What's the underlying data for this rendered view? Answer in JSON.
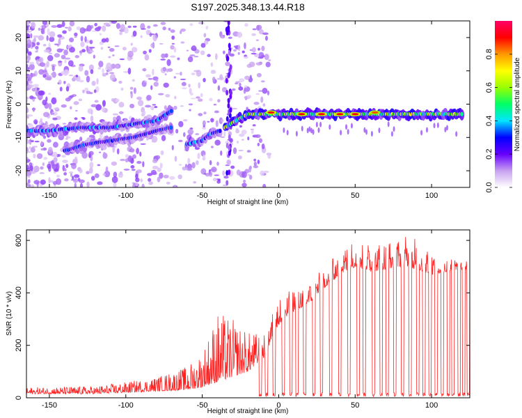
{
  "title": "S197.2025.348.13.44.R18",
  "chart_data": [
    {
      "type": "heatmap",
      "xlabel": "Height of straight line (km)",
      "ylabel": "Frequency (Hz)",
      "xlim": [
        -165,
        125
      ],
      "ylim": [
        -25,
        25
      ],
      "xticks": [
        -150,
        -100,
        -50,
        0,
        50,
        100
      ],
      "yticks": [
        -20,
        -10,
        0,
        10,
        20
      ],
      "colorbar": {
        "label": "Normalized spectral amplitude",
        "range": [
          0,
          1
        ],
        "ticks": [
          0.0,
          0.2,
          0.4,
          0.6,
          0.8
        ],
        "colors": [
          "#ffffff",
          "#c8a0f0",
          "#6600ff",
          "#0000ff",
          "#00e5ff",
          "#00ff66",
          "#99ff00",
          "#ffff00",
          "#ff9900",
          "#ff0000",
          "#ff0066"
        ]
      },
      "ridge": {
        "segments": [
          {
            "x": [
              -165,
              -150,
              -130,
              -110,
              -95,
              -80,
              -70
            ],
            "freq": [
              -8,
              -8,
              -7,
              -7,
              -6,
              -5,
              -2
            ],
            "amp": 0.35
          },
          {
            "x": [
              -140,
              -125,
              -110,
              -95,
              -80,
              -70
            ],
            "freq": [
              -14,
              -12,
              -11,
              -10,
              -8,
              -7
            ],
            "amp": 0.3
          },
          {
            "x": [
              -60,
              -50,
              -45,
              -38
            ],
            "freq": [
              -12,
              -11,
              -9,
              -8
            ],
            "amp": 0.35
          },
          {
            "x": [
              -35,
              -28,
              -20,
              -10,
              0,
              10,
              20,
              30,
              40,
              50,
              60,
              70,
              80,
              90,
              100,
              110,
              120
            ],
            "freq": [
              -7,
              -5,
              -3,
              -3,
              -3,
              -3,
              -3,
              -3,
              -3,
              -3,
              -3,
              -3,
              -3,
              -3,
              -3,
              -3,
              -3
            ],
            "amp": 0.6
          }
        ],
        "hotspots": [
          {
            "x": -5,
            "freq": -2.5,
            "amp": 0.9
          },
          {
            "x": 15,
            "freq": -3,
            "amp": 0.9
          },
          {
            "x": 28,
            "freq": -3,
            "amp": 0.9
          },
          {
            "x": 40,
            "freq": -3,
            "amp": 0.9
          },
          {
            "x": 50,
            "freq": -3,
            "amp": 0.9
          },
          {
            "x": 63,
            "freq": -2.5,
            "amp": 0.85
          }
        ]
      }
    },
    {
      "type": "line",
      "xlabel": "Height of straight line (km)",
      "ylabel": "SNR (10 * v/v)",
      "xlim": [
        -165,
        125
      ],
      "ylim": [
        0,
        640
      ],
      "xticks": [
        -150,
        -100,
        -50,
        0,
        50,
        100
      ],
      "yticks": [
        0,
        200,
        400,
        600
      ],
      "series": [
        {
          "name": "SNR",
          "color": "#ff2020",
          "envelope": {
            "x": [
              -165,
              -120,
              -100,
              -80,
              -60,
              -50,
              -40,
              -30,
              -20,
              -10,
              0,
              10,
              20,
              30,
              40,
              50,
              60,
              70,
              80,
              90,
              100,
              110,
              125
            ],
            "baseline": [
              15,
              15,
              20,
              25,
              30,
              40,
              60,
              80,
              100,
              150,
              280,
              330,
              360,
              420,
              470,
              500,
              480,
              490,
              500,
              490,
              470,
              480,
              490
            ],
            "peak": [
              40,
              45,
              60,
              80,
              120,
              180,
              330,
              300,
              250,
              250,
              380,
              420,
              440,
              500,
              560,
              610,
              590,
              600,
              610,
              630,
              560,
              540,
              530
            ]
          },
          "dropouts": [
            -12,
            -8,
            -3,
            3,
            8,
            12,
            17,
            23,
            28,
            34,
            40,
            46,
            52,
            56,
            62,
            67,
            71,
            76,
            81,
            86,
            91,
            95,
            99,
            103,
            107,
            111,
            114,
            118,
            121,
            124
          ]
        }
      ]
    }
  ]
}
